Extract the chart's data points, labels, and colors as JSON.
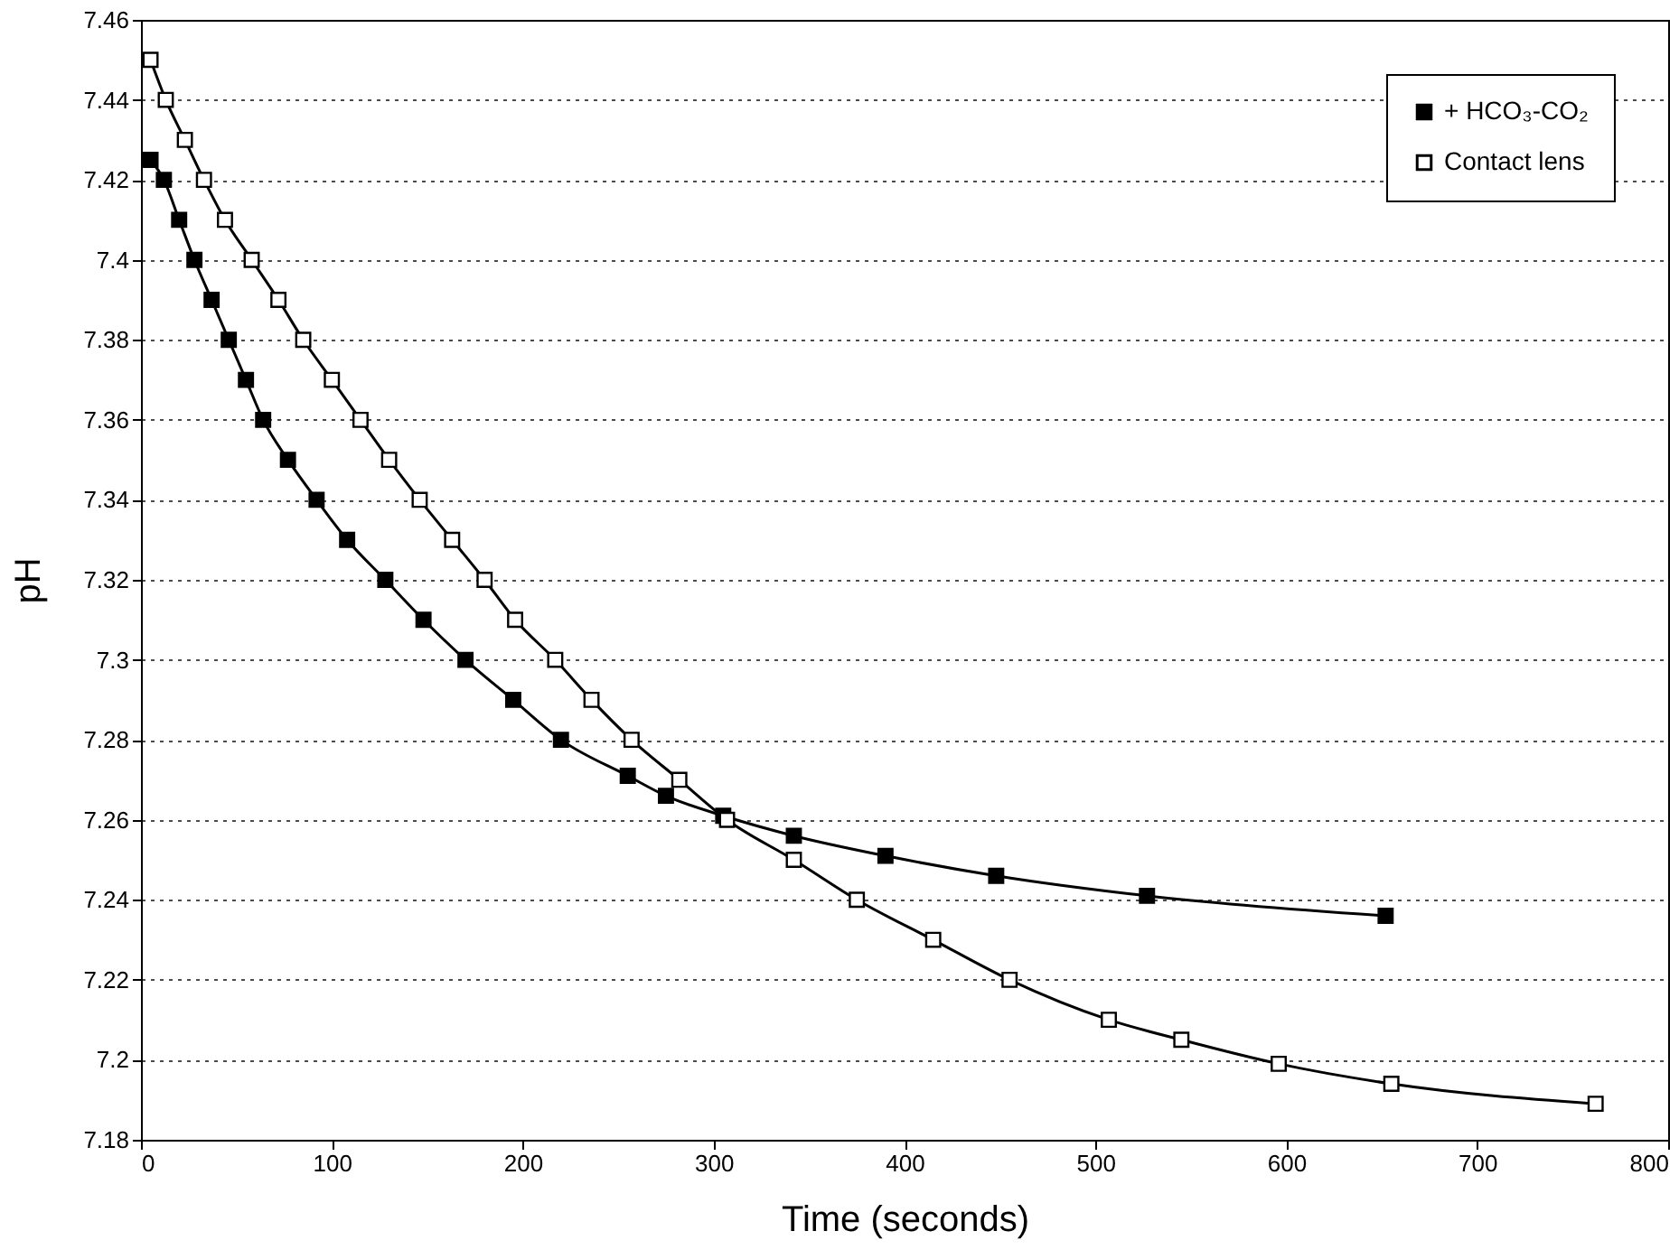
{
  "chart_data": {
    "type": "line",
    "xlabel": "Time (seconds)",
    "ylabel": "pH",
    "xlim": [
      0,
      800
    ],
    "xticks": [
      0,
      100,
      200,
      300,
      400,
      500,
      600,
      700,
      800
    ],
    "ylim": [
      7.18,
      7.46
    ],
    "yticks": [
      7.18,
      7.2,
      7.22,
      7.24,
      7.26,
      7.28,
      7.3,
      7.32,
      7.34,
      7.36,
      7.38,
      7.4,
      7.42,
      7.44,
      7.46
    ],
    "grid": "y",
    "legend": "top right",
    "marker": "square",
    "series": [
      {
        "name": "+ HCO₃-CO₂",
        "color": "#000000",
        "x": [
          5,
          12,
          20,
          28,
          37,
          46,
          55,
          64,
          77,
          92,
          108,
          128,
          148,
          170,
          195,
          220,
          255,
          275,
          305,
          342,
          390,
          448,
          527,
          652
        ],
        "values": [
          7.425,
          7.42,
          7.41,
          7.4,
          7.39,
          7.38,
          7.37,
          7.36,
          7.35,
          7.34,
          7.33,
          7.32,
          7.31,
          7.3,
          7.29,
          7.28,
          7.271,
          7.266,
          7.261,
          7.256,
          7.251,
          7.246,
          7.241,
          7.236
        ]
      },
      {
        "name": "Contact lens",
        "color": "#000000",
        "x": [
          5,
          13,
          23,
          33,
          44,
          58,
          72,
          85,
          100,
          115,
          130,
          146,
          163,
          180,
          196,
          217,
          236,
          257,
          282,
          307,
          342,
          375,
          415,
          455,
          507,
          545,
          596,
          655,
          762
        ],
        "values": [
          7.45,
          7.44,
          7.43,
          7.42,
          7.41,
          7.4,
          7.39,
          7.38,
          7.37,
          7.36,
          7.35,
          7.34,
          7.33,
          7.32,
          7.31,
          7.3,
          7.29,
          7.28,
          7.27,
          7.26,
          7.25,
          7.24,
          7.23,
          7.22,
          7.21,
          7.205,
          7.199,
          7.194,
          7.189
        ]
      }
    ]
  }
}
